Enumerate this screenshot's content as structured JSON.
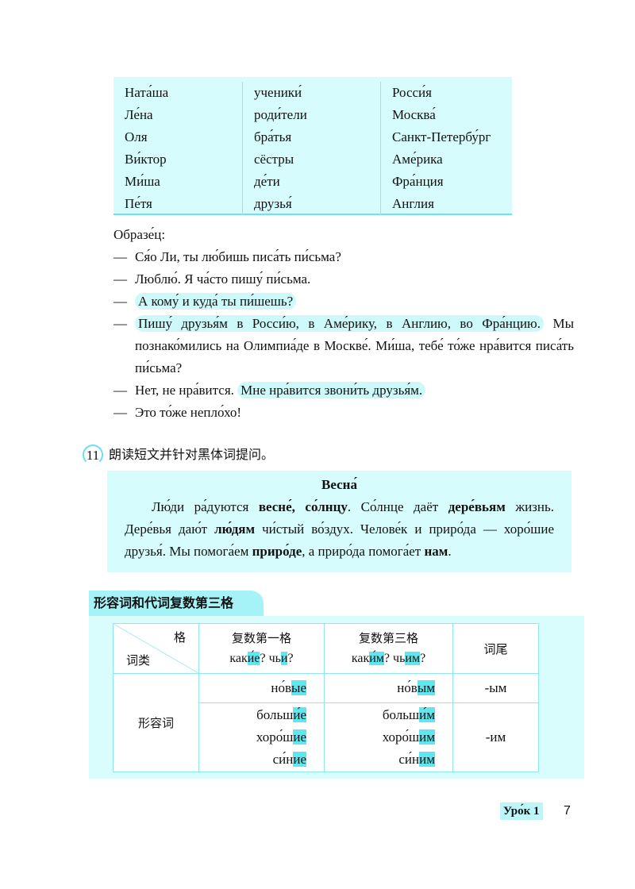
{
  "names_table": {
    "col1": [
      "Ната́ша",
      "Ле́на",
      "Оля",
      "Ви́ктор",
      "Ми́ша",
      "Пе́тя"
    ],
    "col2": [
      "ученики́",
      "роди́тели",
      "бра́тья",
      "сёстры",
      "де́ти",
      "друзья́"
    ],
    "col3": [
      "Росси́я",
      "Москва́",
      "Санкт-Петербу́рг",
      "Аме́рика",
      "Фра́нция",
      "Англия"
    ]
  },
  "sample": {
    "label": "Образе́ц:",
    "dash": "—",
    "lines": [
      {
        "text": "Ся́о Ли, ты лю́бишь писа́ть пи́сьма?"
      },
      {
        "text": "Люблю́. Я ча́сто пишу́ пи́сьма."
      },
      {
        "highlight": "А кому́ и куда́ ты пи́шешь?"
      },
      {
        "highlight": "Пишу́ друзья́м в Росси́ю, в Аме́рику, в Англию, во Фра́нцию.",
        "text": " Мы познако́мились на Олимпиа́де в Москве́. Ми́ша, тебе́ то́же нра́вится писа́ть пи́сьма?"
      },
      {
        "text": "Нет, не нра́вится. ",
        "highlight": "Мне нра́вится звони́ть друзья́м."
      },
      {
        "text": "Это то́же непло́хо!"
      }
    ]
  },
  "exercise11": {
    "number": "11",
    "instruction": "朗读短文并针对黑体词提问。",
    "title": "Весна́",
    "segments": [
      "Лю́ди ра́дуются ",
      "весне́, со́лнцу",
      ". Со́лнце даёт ",
      "дере́вьям",
      " жизнь. Дере́вья даю́т ",
      "лю́дям",
      " чи́стый во́здух. Челове́к и приро́да — хоро́шие друзья́. Мы помога́ем ",
      "приро́де",
      ", а приро́да помога́ет ",
      "нам",
      "."
    ]
  },
  "grammar": {
    "title": "形容词和代词复数第三格",
    "corner_top": "格",
    "corner_bottom": "词类",
    "headers": [
      {
        "title": "复数第一格",
        "q1a": "как",
        "q1b": "и́е",
        "q1c": "? чь",
        "q1d": "и",
        "q1e": "?"
      },
      {
        "title": "复数第三格",
        "q1a": "как",
        "q1b": "и́м",
        "q1c": "? чь",
        "q1d": "им",
        "q1e": "?"
      },
      {
        "title": "词尾"
      }
    ],
    "row_label": "形容词",
    "rows": [
      {
        "nom_stem": "но́в",
        "nom_end": "ые",
        "dat_stem": "но́в",
        "dat_end": "ым",
        "ending": "-ым"
      },
      {
        "nom_stem": "больш",
        "nom_end": "и́е",
        "dat_stem": "больш",
        "dat_end": "и́м",
        "ending": "-им"
      },
      {
        "nom_stem": "хоро́ш",
        "nom_end": "ие",
        "dat_stem": "хоро́ш",
        "dat_end": "им"
      },
      {
        "nom_stem": "си́н",
        "nom_end": "ие",
        "dat_stem": "си́н",
        "dat_end": "им"
      }
    ]
  },
  "footer": {
    "lesson": "Уро́к 1",
    "page": "7"
  }
}
